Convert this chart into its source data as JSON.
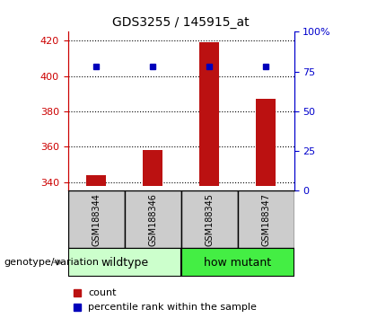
{
  "title": "GDS3255 / 145915_at",
  "samples": [
    "GSM188344",
    "GSM188346",
    "GSM188345",
    "GSM188347"
  ],
  "count_values": [
    344,
    358,
    419,
    387
  ],
  "percentile_values": [
    78,
    78,
    78,
    78
  ],
  "ylim_left": [
    335,
    425
  ],
  "ylim_right": [
    0,
    100
  ],
  "left_ticks": [
    340,
    360,
    380,
    400,
    420
  ],
  "right_ticks": [
    0,
    25,
    50,
    75,
    100
  ],
  "right_tick_labels": [
    "0",
    "25",
    "50",
    "75",
    "100%"
  ],
  "bar_color": "#bb1111",
  "square_color": "#0000bb",
  "bar_bottom": 338,
  "groups": [
    {
      "label": "wildtype",
      "indices": [
        0,
        1
      ],
      "color": "#ccffcc"
    },
    {
      "label": "how mutant",
      "indices": [
        2,
        3
      ],
      "color": "#44ee44"
    }
  ],
  "group_label_text": "genotype/variation",
  "legend_count_label": "count",
  "legend_pct_label": "percentile rank within the sample",
  "left_axis_color": "#cc0000",
  "right_axis_color": "#0000cc",
  "sample_box_color": "#cccccc",
  "bar_width": 0.35,
  "title_fontsize": 10,
  "tick_fontsize": 8,
  "sample_fontsize": 7,
  "group_fontsize": 9,
  "legend_fontsize": 8
}
